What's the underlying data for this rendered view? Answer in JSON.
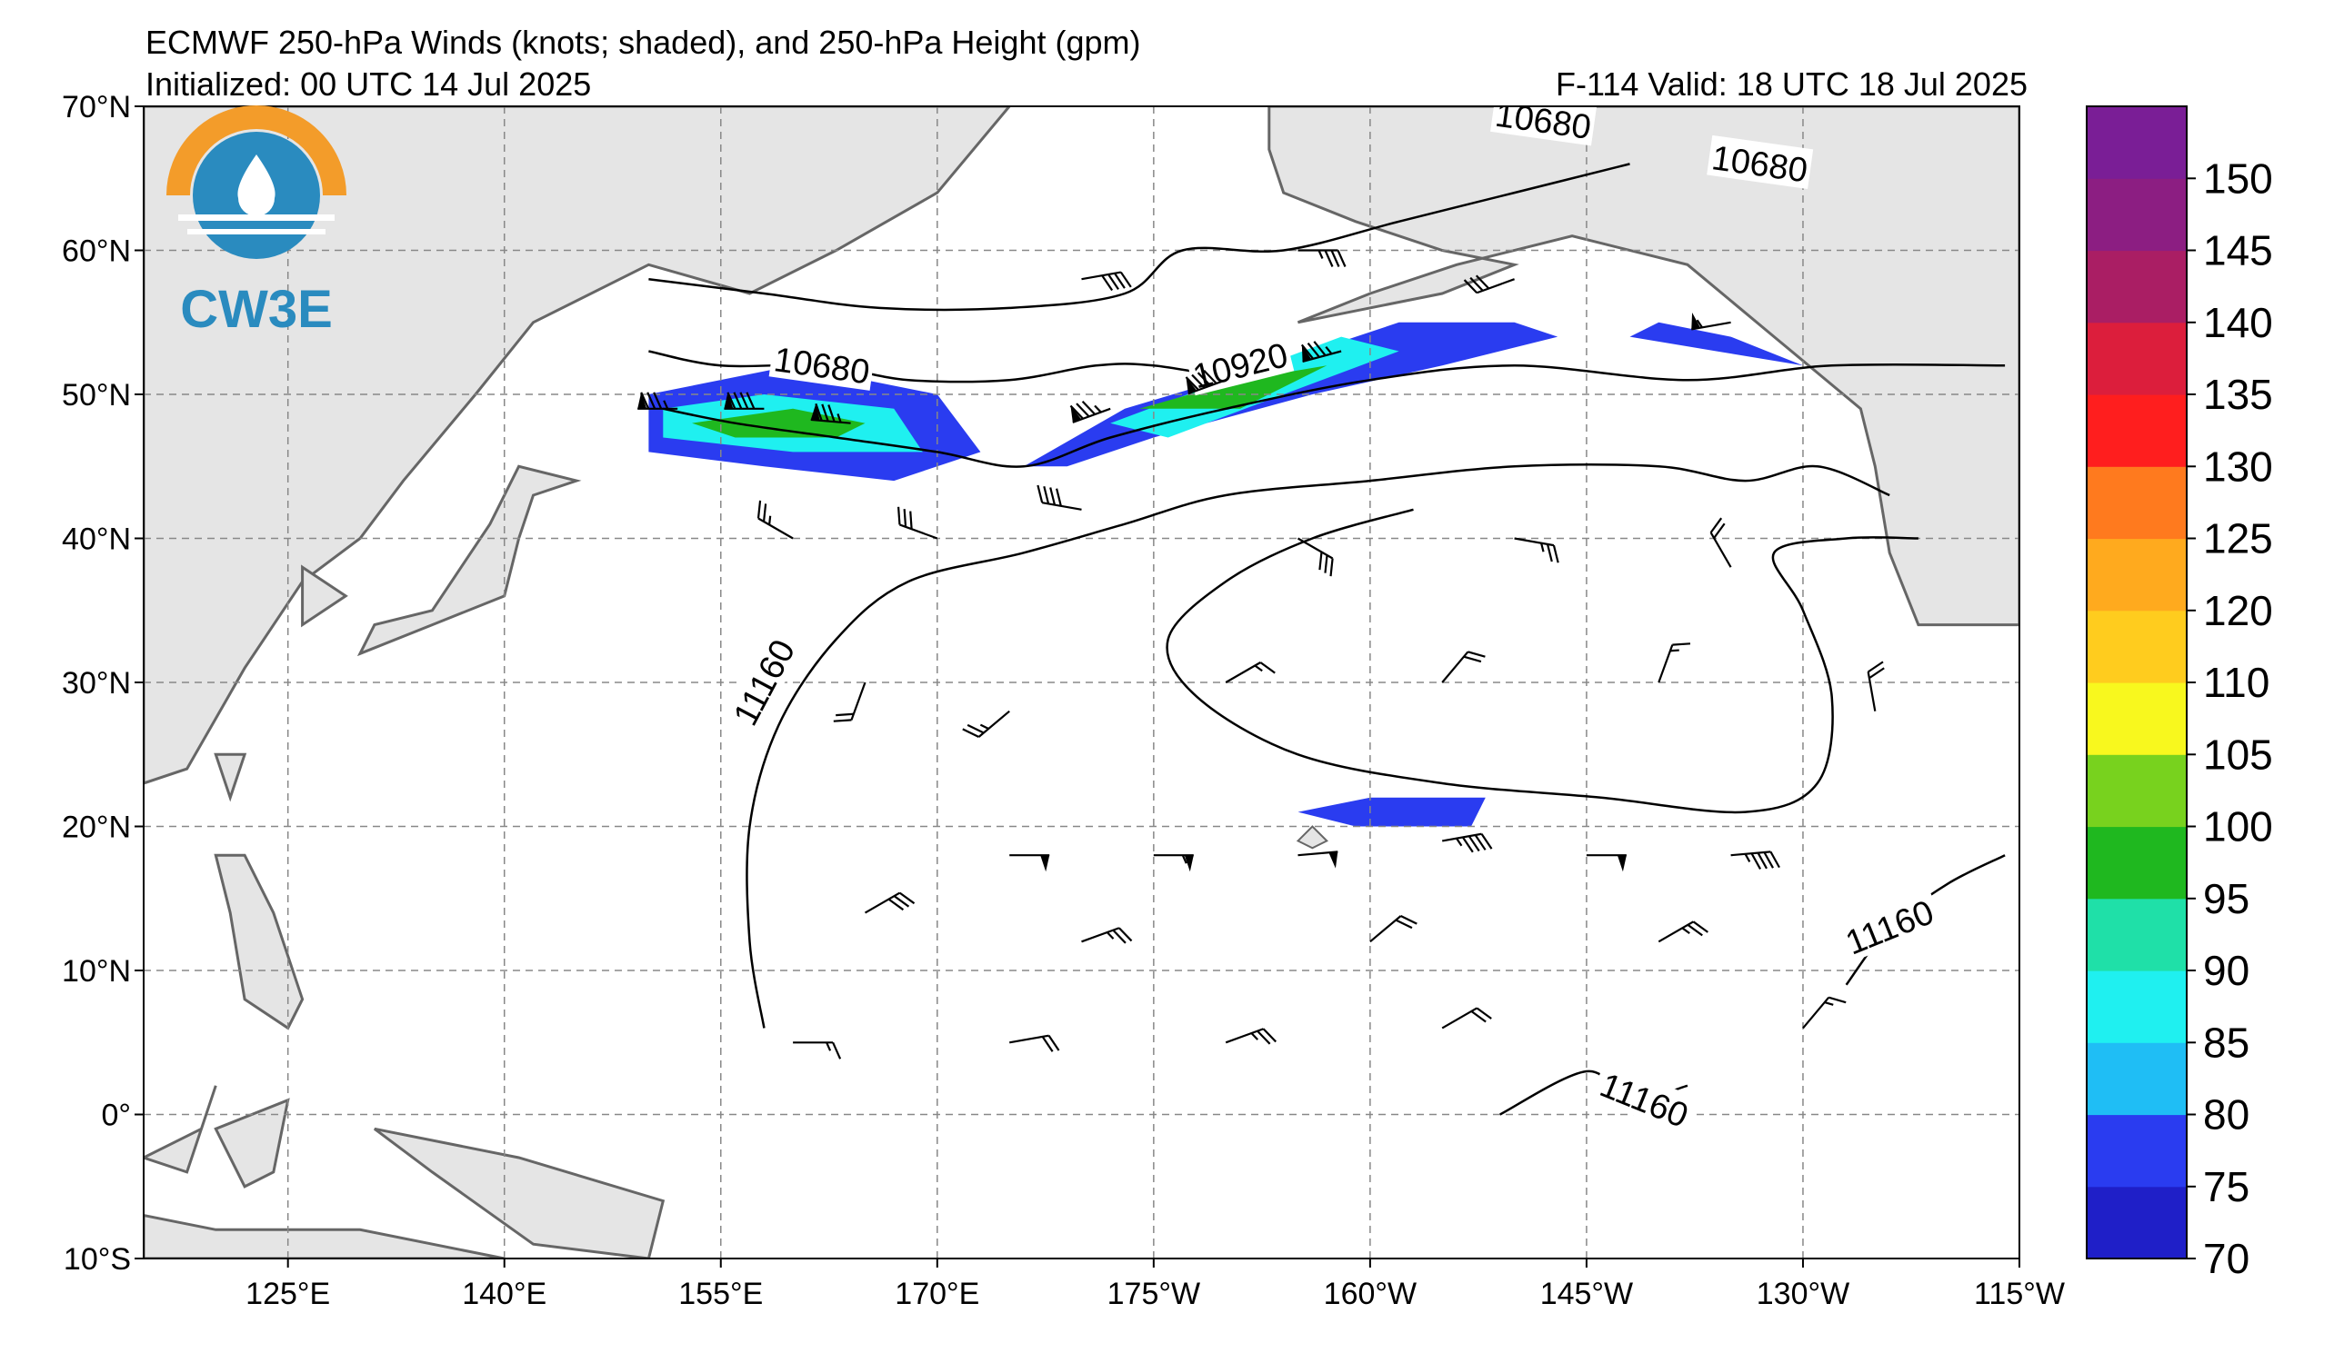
{
  "title": {
    "line1": "ECMWF 250-hPa Winds (knots; shaded), and 250-hPa Height (gpm)",
    "line2": "Initialized: 00 UTC 14 Jul 2025",
    "valid": "F-114  Valid: 18 UTC 18 Jul 2025"
  },
  "logo": {
    "text": "CW3E",
    "colors": {
      "sun": "#f39c2a",
      "water": "#2a8bbf"
    }
  },
  "map": {
    "extent": {
      "lon_min": 115,
      "lon_max": 245,
      "lat_min": -10,
      "lat_max": 70
    },
    "lat_ticks": [
      {
        "lat": 70,
        "label": "70°N"
      },
      {
        "lat": 60,
        "label": "60°N"
      },
      {
        "lat": 50,
        "label": "50°N"
      },
      {
        "lat": 40,
        "label": "40°N"
      },
      {
        "lat": 30,
        "label": "30°N"
      },
      {
        "lat": 20,
        "label": "20°N"
      },
      {
        "lat": 10,
        "label": "10°N"
      },
      {
        "lat": 0,
        "label": "0°"
      },
      {
        "lat": -10,
        "label": "10°S"
      }
    ],
    "lon_ticks": [
      {
        "lon": 125,
        "label": "125°E"
      },
      {
        "lon": 140,
        "label": "140°E"
      },
      {
        "lon": 155,
        "label": "155°E"
      },
      {
        "lon": 170,
        "label": "170°E"
      },
      {
        "lon": 185,
        "label": "175°W"
      },
      {
        "lon": 200,
        "label": "160°W"
      },
      {
        "lon": 215,
        "label": "145°W"
      },
      {
        "lon": 230,
        "label": "130°W"
      },
      {
        "lon": 245,
        "label": "115°W"
      }
    ],
    "height_contours": [
      {
        "value": 10680,
        "points": [
          [
            150,
            58
          ],
          [
            158,
            57
          ],
          [
            166,
            56
          ],
          [
            175,
            56
          ],
          [
            183,
            57
          ],
          [
            187,
            60
          ],
          [
            194,
            60
          ],
          [
            202,
            62
          ],
          [
            210,
            64
          ],
          [
            218,
            66
          ]
        ]
      },
      {
        "value": 10680,
        "points": [
          [
            150,
            53
          ],
          [
            155,
            52
          ],
          [
            162,
            52
          ],
          [
            168,
            51
          ],
          [
            175,
            51
          ],
          [
            181,
            52
          ],
          [
            185,
            52
          ],
          [
            191,
            51
          ]
        ]
      },
      {
        "value": 10920,
        "points": [
          [
            151,
            49
          ],
          [
            156,
            48
          ],
          [
            163,
            47
          ],
          [
            170,
            46
          ],
          [
            176,
            45
          ],
          [
            182,
            47
          ],
          [
            190,
            49
          ],
          [
            200,
            51
          ],
          [
            210,
            52
          ],
          [
            222,
            51
          ],
          [
            232,
            52
          ],
          [
            244,
            52
          ]
        ]
      },
      {
        "value": 11160,
        "points": [
          [
            158,
            6
          ],
          [
            157,
            12
          ],
          [
            157,
            20
          ],
          [
            159,
            27
          ],
          [
            163,
            33
          ],
          [
            168,
            37
          ],
          [
            176,
            39
          ],
          [
            183,
            41
          ],
          [
            190,
            43
          ],
          [
            200,
            44
          ],
          [
            210,
            45
          ],
          [
            220,
            45
          ],
          [
            226,
            44
          ],
          [
            231,
            45
          ],
          [
            236,
            43
          ]
        ]
      },
      {
        "value": 11160,
        "points": [
          [
            203,
            42
          ],
          [
            196,
            40
          ],
          [
            190,
            37
          ],
          [
            186,
            33
          ],
          [
            188,
            29
          ],
          [
            195,
            25
          ],
          [
            205,
            23
          ],
          [
            216,
            22
          ],
          [
            226,
            21
          ],
          [
            231,
            23
          ],
          [
            232,
            29
          ],
          [
            230,
            35
          ],
          [
            228,
            39
          ],
          [
            233,
            40
          ],
          [
            238,
            40
          ]
        ]
      },
      {
        "value": 11160,
        "points": [
          [
            233,
            9
          ],
          [
            236,
            13
          ],
          [
            240,
            16
          ],
          [
            244,
            18
          ]
        ]
      },
      {
        "value": 11160,
        "points": [
          [
            209,
            0
          ],
          [
            215,
            3
          ],
          [
            218,
            1
          ],
          [
            222,
            2
          ]
        ]
      }
    ],
    "contour_labels": [
      {
        "text": "10680",
        "lon": 162,
        "lat": 52,
        "angle": 8
      },
      {
        "text": "10680",
        "lon": 212,
        "lat": 69,
        "angle": 8
      },
      {
        "text": "10680",
        "lon": 227,
        "lat": 66,
        "angle": 8
      },
      {
        "text": "10920",
        "lon": 191,
        "lat": 52,
        "angle": -14
      },
      {
        "text": "11160",
        "lon": 158,
        "lat": 30,
        "angle": -62
      },
      {
        "text": "11160",
        "lon": 236,
        "lat": 13,
        "angle": -22
      },
      {
        "text": "11160",
        "lon": 219,
        "lat": 1,
        "angle": 22
      }
    ],
    "jet_streaks": [
      {
        "speed": 75,
        "polygon": [
          [
            150,
            50
          ],
          [
            160,
            52
          ],
          [
            170,
            50
          ],
          [
            173,
            46
          ],
          [
            167,
            44
          ],
          [
            158,
            45
          ],
          [
            150,
            46
          ]
        ]
      },
      {
        "speed": 85,
        "polygon": [
          [
            151,
            49
          ],
          [
            158,
            50
          ],
          [
            167,
            49
          ],
          [
            169,
            46
          ],
          [
            160,
            46
          ],
          [
            151,
            47
          ]
        ]
      },
      {
        "speed": 95,
        "polygon": [
          [
            153,
            48
          ],
          [
            160,
            49
          ],
          [
            165,
            48
          ],
          [
            163,
            47
          ],
          [
            156,
            47
          ]
        ]
      },
      {
        "speed": 75,
        "polygon": [
          [
            176,
            45
          ],
          [
            183,
            49
          ],
          [
            193,
            52
          ],
          [
            202,
            55
          ],
          [
            210,
            55
          ],
          [
            213,
            54
          ],
          [
            205,
            52
          ],
          [
            196,
            50
          ],
          [
            185,
            47
          ],
          [
            179,
            45
          ]
        ]
      },
      {
        "speed": 85,
        "polygon": [
          [
            182,
            48
          ],
          [
            190,
            51
          ],
          [
            198,
            54
          ],
          [
            202,
            53
          ],
          [
            194,
            50
          ],
          [
            186,
            47
          ]
        ]
      },
      {
        "speed": 95,
        "polygon": [
          [
            184,
            49
          ],
          [
            191,
            51
          ],
          [
            197,
            52
          ],
          [
            191,
            49
          ]
        ]
      },
      {
        "speed": 75,
        "polygon": [
          [
            218,
            54
          ],
          [
            224,
            53
          ],
          [
            230,
            52
          ],
          [
            225,
            54
          ],
          [
            220,
            55
          ]
        ]
      },
      {
        "speed": 75,
        "polygon": [
          [
            195,
            21
          ],
          [
            200,
            22
          ],
          [
            208,
            22
          ],
          [
            207,
            20
          ],
          [
            199,
            20
          ]
        ]
      }
    ],
    "wind_barbs": [
      {
        "lon": 152,
        "lat": 49,
        "speed": 85,
        "dir": 270
      },
      {
        "lon": 158,
        "lat": 49,
        "speed": 90,
        "dir": 270
      },
      {
        "lon": 164,
        "lat": 48,
        "speed": 85,
        "dir": 275
      },
      {
        "lon": 182,
        "lat": 49,
        "speed": 85,
        "dir": 250
      },
      {
        "lon": 190,
        "lat": 51,
        "speed": 90,
        "dir": 250
      },
      {
        "lon": 198,
        "lat": 53,
        "speed": 85,
        "dir": 255
      },
      {
        "lon": 180,
        "lat": 58,
        "speed": 40,
        "dir": 80
      },
      {
        "lon": 195,
        "lat": 60,
        "speed": 35,
        "dir": 90
      },
      {
        "lon": 210,
        "lat": 58,
        "speed": 30,
        "dir": 250
      },
      {
        "lon": 225,
        "lat": 55,
        "speed": 55,
        "dir": 260
      },
      {
        "lon": 160,
        "lat": 40,
        "speed": 25,
        "dir": 300
      },
      {
        "lon": 170,
        "lat": 40,
        "speed": 30,
        "dir": 290
      },
      {
        "lon": 180,
        "lat": 42,
        "speed": 40,
        "dir": 280
      },
      {
        "lon": 195,
        "lat": 40,
        "speed": 30,
        "dir": 120
      },
      {
        "lon": 210,
        "lat": 40,
        "speed": 25,
        "dir": 100
      },
      {
        "lon": 225,
        "lat": 38,
        "speed": 20,
        "dir": 330
      },
      {
        "lon": 165,
        "lat": 30,
        "speed": 20,
        "dir": 200
      },
      {
        "lon": 175,
        "lat": 28,
        "speed": 25,
        "dir": 230
      },
      {
        "lon": 190,
        "lat": 30,
        "speed": 15,
        "dir": 60
      },
      {
        "lon": 205,
        "lat": 30,
        "speed": 20,
        "dir": 40
      },
      {
        "lon": 220,
        "lat": 30,
        "speed": 15,
        "dir": 20
      },
      {
        "lon": 235,
        "lat": 28,
        "speed": 20,
        "dir": 350
      },
      {
        "lon": 175,
        "lat": 18,
        "speed": 50,
        "dir": 90
      },
      {
        "lon": 185,
        "lat": 18,
        "speed": 55,
        "dir": 90
      },
      {
        "lon": 195,
        "lat": 18,
        "speed": 50,
        "dir": 85
      },
      {
        "lon": 205,
        "lat": 19,
        "speed": 45,
        "dir": 80
      },
      {
        "lon": 215,
        "lat": 18,
        "speed": 50,
        "dir": 90
      },
      {
        "lon": 225,
        "lat": 18,
        "speed": 45,
        "dir": 85
      },
      {
        "lon": 165,
        "lat": 14,
        "speed": 30,
        "dir": 60
      },
      {
        "lon": 180,
        "lat": 12,
        "speed": 25,
        "dir": 70
      },
      {
        "lon": 200,
        "lat": 12,
        "speed": 20,
        "dir": 50
      },
      {
        "lon": 220,
        "lat": 12,
        "speed": 25,
        "dir": 60
      },
      {
        "lon": 160,
        "lat": 5,
        "speed": 15,
        "dir": 90
      },
      {
        "lon": 175,
        "lat": 5,
        "speed": 20,
        "dir": 80
      },
      {
        "lon": 190,
        "lat": 5,
        "speed": 25,
        "dir": 70
      },
      {
        "lon": 205,
        "lat": 6,
        "speed": 20,
        "dir": 60
      },
      {
        "lon": 230,
        "lat": 6,
        "speed": 15,
        "dir": 40
      }
    ],
    "land_color": "#e5e5e5",
    "coast_color": "#666666"
  },
  "colorbar": {
    "levels": [
      {
        "label": "70",
        "color": "#1f1fc8"
      },
      {
        "label": "75",
        "color": "#2a3cf0"
      },
      {
        "label": "80",
        "color": "#1fbef5"
      },
      {
        "label": "85",
        "color": "#1ff0f0"
      },
      {
        "label": "90",
        "color": "#1fe0a8"
      },
      {
        "label": "95",
        "color": "#1fb81f"
      },
      {
        "label": "100",
        "color": "#78d21e"
      },
      {
        "label": "105",
        "color": "#f8f81e"
      },
      {
        "label": "110",
        "color": "#ffcc1e"
      },
      {
        "label": "120",
        "color": "#ffaa1e"
      },
      {
        "label": "125",
        "color": "#ff7a1e"
      },
      {
        "label": "130",
        "color": "#ff1e1e"
      },
      {
        "label": "135",
        "color": "#dc1e3c"
      },
      {
        "label": "140",
        "color": "#aa1e64"
      },
      {
        "label": "145",
        "color": "#8c1e82"
      },
      {
        "label": "150",
        "color": "#7a1e96"
      }
    ],
    "top_label": "150",
    "labels": [
      "70",
      "75",
      "80",
      "85",
      "90",
      "95",
      "100",
      "105",
      "110",
      "120",
      "125",
      "130",
      "135",
      "140",
      "145",
      "150"
    ]
  }
}
